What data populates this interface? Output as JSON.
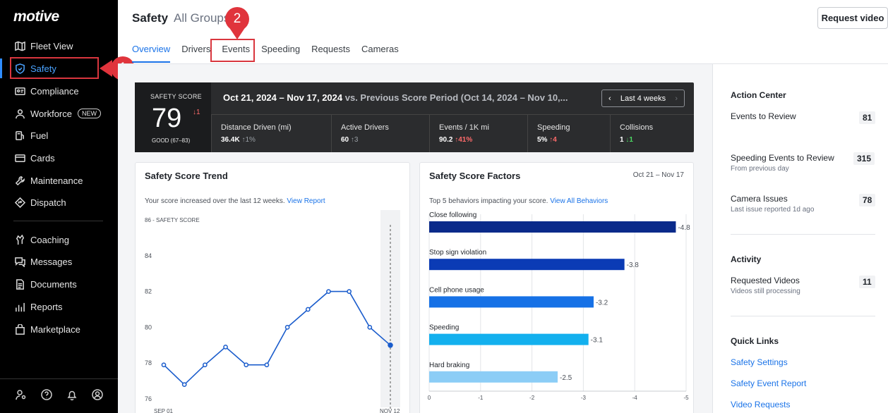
{
  "brand": {
    "logo_text": "motive",
    "accent": "#1a73e8",
    "sidebar_bg": "#000000"
  },
  "sidebar": {
    "items": [
      {
        "label": "Fleet View",
        "icon": "map-icon"
      },
      {
        "label": "Safety",
        "icon": "shield-icon",
        "active": true
      },
      {
        "label": "Compliance",
        "icon": "id-card-icon"
      },
      {
        "label": "Workforce",
        "icon": "person-icon",
        "badge": "NEW"
      },
      {
        "label": "Fuel",
        "icon": "fuel-icon"
      },
      {
        "label": "Cards",
        "icon": "card-icon"
      },
      {
        "label": "Maintenance",
        "icon": "wrench-icon"
      },
      {
        "label": "Dispatch",
        "icon": "route-icon"
      },
      {
        "label": "Coaching",
        "icon": "coaching-icon"
      },
      {
        "label": "Messages",
        "icon": "messages-icon"
      },
      {
        "label": "Documents",
        "icon": "document-icon"
      },
      {
        "label": "Reports",
        "icon": "reports-icon"
      },
      {
        "label": "Marketplace",
        "icon": "store-icon"
      }
    ],
    "bottom_icons": [
      "user-settings-icon",
      "help-icon",
      "bell-icon",
      "profile-icon"
    ]
  },
  "annotations": {
    "step1": "1",
    "step2": "2"
  },
  "header": {
    "title": "Safety",
    "group": "All Groups",
    "request_video": "Request video"
  },
  "tabs": [
    "Overview",
    "Drivers",
    "Events",
    "Speeding",
    "Requests",
    "Cameras"
  ],
  "banner": {
    "score_label": "SAFETY SCORE",
    "score": "79",
    "score_delta": "↓1",
    "grade": "GOOD (67–83)",
    "period": "Oct 21, 2024 – Nov 17, 2024",
    "comparison": " vs. Previous Score Period (Oct 14, 2024 – Nov 10,...",
    "range_button": "Last 4 weeks",
    "metrics": [
      {
        "label": "Distance Driven (mi)",
        "value": "36.4K",
        "delta": "↑1%",
        "tone": "gray"
      },
      {
        "label": "Active Drivers",
        "value": "60",
        "delta": "↑3",
        "tone": "gray"
      },
      {
        "label": "Events / 1K mi",
        "value": "90.2",
        "delta": "↑41%",
        "tone": "red"
      },
      {
        "label": "Speeding",
        "value": "5%",
        "delta": "↑4",
        "tone": "red"
      },
      {
        "label": "Collisions",
        "value": "1",
        "delta": "↓1",
        "tone": "green"
      }
    ]
  },
  "trend_card": {
    "title": "Safety Score Trend",
    "subtitle": "Your score increased over the last 12 weeks.",
    "link": "View Report",
    "y_axis_title": "86 - SAFETY SCORE",
    "x_start": "SEP 01",
    "x_end": "NOV 12"
  },
  "factors_card": {
    "title": "Safety Score Factors",
    "date_range": "Oct 21 – Nov 17",
    "subtitle": "Top 5 behaviors impacting your score.",
    "link": "View All Behaviors"
  },
  "chart_data": [
    {
      "type": "line",
      "title": "Safety Score Trend",
      "ylabel": "SAFETY SCORE",
      "ylim": [
        76,
        86
      ],
      "y_ticks": [
        76,
        78,
        80,
        82,
        84,
        86
      ],
      "x_labels": [
        "SEP 01",
        "NOV 12"
      ],
      "values": [
        77.9,
        76.8,
        77.9,
        78.9,
        77.9,
        77.9,
        80.0,
        81.0,
        82.0,
        82.0,
        80.0,
        79.0
      ],
      "color": "#1a5ccc",
      "grid": false
    },
    {
      "type": "bar",
      "orientation": "horizontal",
      "title": "Safety Score Factors",
      "categories": [
        "Close following",
        "Stop sign violation",
        "Cell phone usage",
        "Speeding",
        "Hard braking"
      ],
      "values": [
        -4.8,
        -3.8,
        -3.2,
        -3.1,
        -2.5
      ],
      "data_labels": [
        "-4.8",
        "-3.8",
        "-3.2",
        "-3.1",
        "-2.5"
      ],
      "colors": [
        "#0a2a8a",
        "#0b3bb5",
        "#1671e6",
        "#13b0ee",
        "#8ccdf6"
      ],
      "xlim": [
        0,
        -5
      ],
      "x_ticks": [
        "0",
        "-1",
        "-2",
        "-3",
        "-4",
        "-5"
      ],
      "grid": true
    }
  ],
  "action_center": {
    "title": "Action Center",
    "rows": [
      {
        "label": "Events to Review",
        "sub": "",
        "count": "81"
      },
      {
        "label": "Speeding Events to Review",
        "sub": "From previous day",
        "count": "315"
      },
      {
        "label": "Camera Issues",
        "sub": "Last issue reported 1d ago",
        "count": "78"
      }
    ]
  },
  "activity": {
    "title": "Activity",
    "rows": [
      {
        "label": "Requested Videos",
        "sub": "Videos still processing",
        "count": "11"
      }
    ]
  },
  "quick_links": {
    "title": "Quick Links",
    "links": [
      "Safety Settings",
      "Safety Event Report",
      "Video Requests"
    ]
  }
}
